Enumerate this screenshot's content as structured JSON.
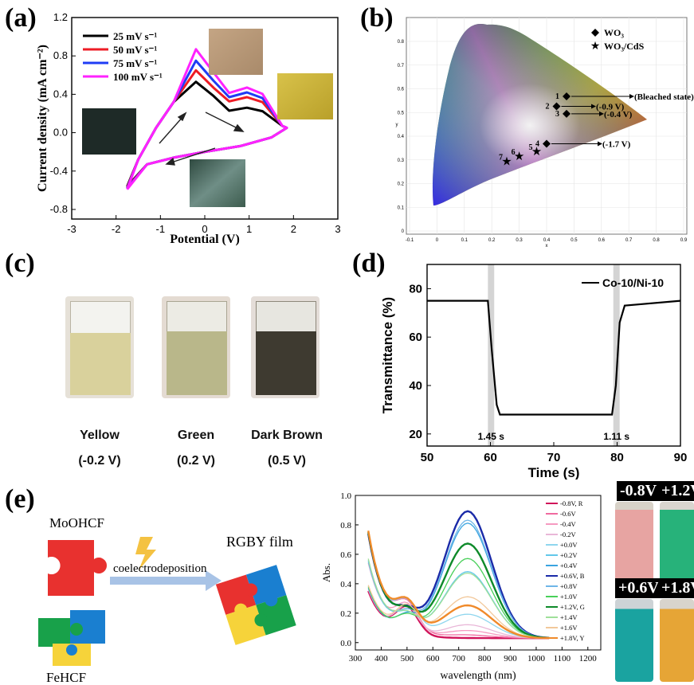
{
  "panels": {
    "a": {
      "label": "(a)",
      "xlabel": "Potential (V)",
      "ylabel": "Current density (mA cm⁻²)",
      "legend": [
        "25 mV s⁻¹",
        "50 mV s⁻¹",
        "75 mV s⁻¹",
        "100 mV s⁻¹"
      ]
    },
    "b": {
      "label": "(b)",
      "legend": [
        "WO₃",
        "WO₃/CdS"
      ],
      "annotations": [
        "(Bleached state)",
        "(-0.9 V)",
        "(-0.4 V)",
        "(-1.7 V)"
      ],
      "point_numbers": [
        "1",
        "2",
        "3",
        "4",
        "5",
        "6",
        "7"
      ],
      "xaxis": "x",
      "yaxis": "y"
    },
    "c": {
      "label": "(c)",
      "colors": [
        "Yellow",
        "Green",
        "Dark Brown"
      ],
      "voltages": [
        "(-0.2 V)",
        "(0.2 V)",
        "(0.5 V)"
      ]
    },
    "d": {
      "label": "(d)",
      "xlabel": "Time (s)",
      "ylabel": "Transmittance (%)",
      "legend": "Co-10/Ni-10",
      "t1": "1.45 s",
      "t2": "1.11 s"
    },
    "e": {
      "label": "(e)",
      "moohcf": "MoOHCF",
      "fehcf": "FeHCF",
      "process": "coelectrodeposition",
      "film": "RGBY film",
      "xlabel": "wavelength (nm)",
      "ylabel": "Abs.",
      "legend": [
        "-0.8V, R",
        "-0.6V",
        "-0.4V",
        "-0.2V",
        "+0.0V",
        "+0.2V",
        "+0.4V",
        "+0.6V, B",
        "+0.8V",
        "+1.0V",
        "+1.2V, G",
        "+1.4V",
        "+1.6V",
        "+1.8V, Y"
      ],
      "vials": [
        "-0.8V",
        "+1.2V",
        "+0.6V",
        "+1.8V"
      ]
    }
  },
  "chart_data": [
    {
      "type": "line",
      "panel": "a",
      "xlim": [
        -3,
        3
      ],
      "ylim": [
        -0.9,
        1.2
      ],
      "xticks": [
        -3,
        -2,
        -1,
        0,
        1,
        2,
        3
      ],
      "yticks": [
        -0.8,
        -0.4,
        0.0,
        0.4,
        0.8,
        1.2
      ],
      "series": [
        {
          "name": "25 mV s⁻¹",
          "color": "#000000",
          "peak": 0.53,
          "shoulder": 0.26,
          "low": -0.56
        },
        {
          "name": "50 mV s⁻¹",
          "color": "#ee1c25",
          "peak": 0.65,
          "shoulder": 0.37,
          "low": -0.57
        },
        {
          "name": "75 mV s⁻¹",
          "color": "#1f3cf5",
          "peak": 0.75,
          "shoulder": 0.42,
          "low": -0.58
        },
        {
          "name": "100 mV s⁻¹",
          "color": "#ff22ff",
          "peak": 0.87,
          "shoulder": 0.47,
          "low": -0.59
        }
      ]
    },
    {
      "type": "scatter",
      "panel": "b",
      "xlim": [
        -0.2,
        0.9
      ],
      "ylim": [
        0,
        0.85
      ],
      "xticks": [
        "-0.1",
        "0",
        "0.1",
        "0.2",
        "0.3",
        "0.4",
        "0.5",
        "0.6",
        "0.7",
        "0.8",
        "0.9"
      ],
      "yticks": [
        "0",
        "0.1",
        "0.2",
        "0.3",
        "0.4",
        "0.5",
        "0.6",
        "0.7",
        "0.8"
      ],
      "wo3": [
        [
          0.43,
          0.54
        ],
        [
          0.39,
          0.5
        ],
        [
          0.43,
          0.47
        ],
        [
          0.35,
          0.35
        ]
      ],
      "wo3cds": [
        [
          0.31,
          0.32
        ],
        [
          0.24,
          0.3
        ],
        [
          0.19,
          0.28
        ]
      ]
    },
    {
      "type": "line",
      "panel": "d",
      "xlim": [
        50,
        90
      ],
      "ylim": [
        15,
        90
      ],
      "xticks": [
        50,
        60,
        70,
        80,
        90
      ],
      "yticks": [
        20,
        40,
        60,
        80
      ],
      "x": [
        50,
        59.6,
        60.2,
        61.0,
        61.5,
        70,
        79.2,
        79.8,
        80.4,
        81.2,
        90
      ],
      "y": [
        75,
        75,
        55,
        32,
        28,
        28,
        28,
        40,
        66,
        73,
        75
      ]
    },
    {
      "type": "line",
      "panel": "e",
      "xlim": [
        300,
        1250
      ],
      "ylim": [
        -0.05,
        1.0
      ],
      "xticks": [
        300,
        400,
        500,
        600,
        700,
        800,
        900,
        1000,
        1100,
        1200
      ],
      "yticks": [
        "0.0",
        "0.2",
        "0.4",
        "0.6",
        "0.8",
        "1.0"
      ],
      "series": [
        {
          "name": "-0.8V, R",
          "color": "#d0145a",
          "peak": 0.0
        },
        {
          "name": "-0.6V",
          "color": "#f06aa0",
          "peak": 0.02
        },
        {
          "name": "-0.4V",
          "color": "#f59ac0",
          "peak": 0.05
        },
        {
          "name": "-0.2V",
          "color": "#e9b7d8",
          "peak": 0.09
        },
        {
          "name": "+0.0V",
          "color": "#8fd6ee",
          "peak": 0.16
        },
        {
          "name": "+0.2V",
          "color": "#62c8ea",
          "peak": 0.45
        },
        {
          "name": "+0.4V",
          "color": "#3aa4e0",
          "peak": 0.78
        },
        {
          "name": "+0.6V, B",
          "color": "#1a2aa8",
          "peak": 0.86
        },
        {
          "name": "+0.8V",
          "color": "#6fb6e8",
          "peak": 0.8
        },
        {
          "name": "+1.0V",
          "color": "#49d05a",
          "peak": 0.54
        },
        {
          "name": "+1.2V, G",
          "color": "#0e8a2a",
          "peak": 0.64
        },
        {
          "name": "+1.4V",
          "color": "#9fe09a",
          "peak": 0.44
        },
        {
          "name": "+1.6V",
          "color": "#f2c89a",
          "peak": 0.28
        },
        {
          "name": "+1.8V, Y",
          "color": "#f08a2a",
          "peak": 0.22
        }
      ]
    }
  ]
}
